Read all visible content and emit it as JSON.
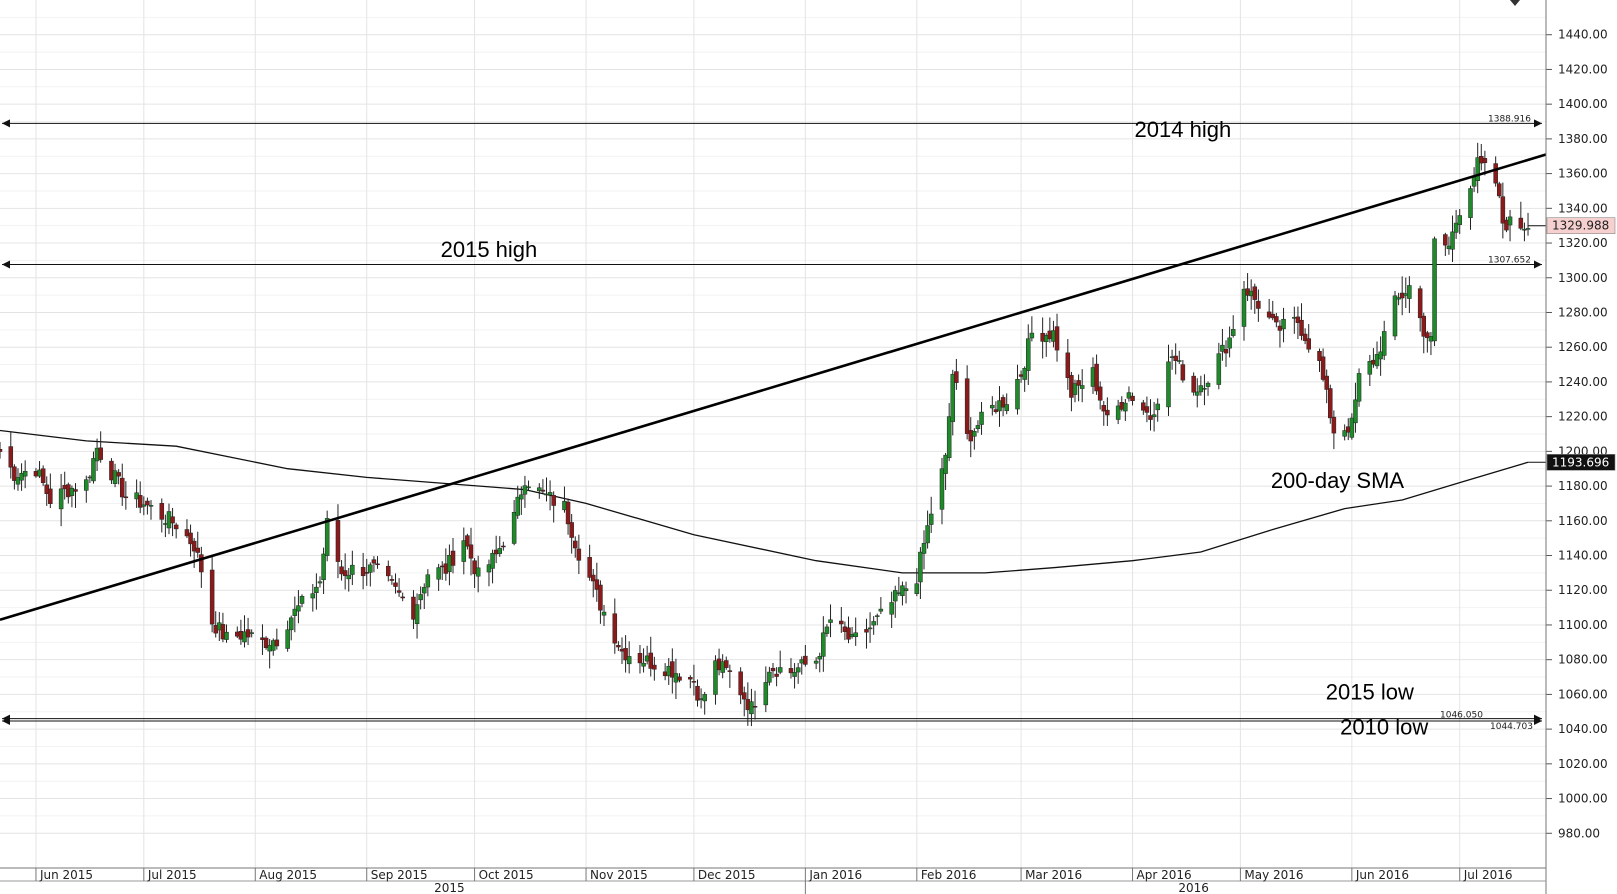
{
  "chart_data": {
    "type": "candlestick",
    "y_axis": {
      "range": [
        960,
        1460
      ],
      "ticks": [
        980,
        1000,
        1020,
        1040,
        1060,
        1080,
        1100,
        1120,
        1140,
        1160,
        1180,
        1200,
        1220,
        1240,
        1260,
        1280,
        1300,
        1320,
        1340,
        1360,
        1380,
        1400,
        1420,
        1440
      ],
      "tick_labels": [
        "980.00",
        "1000.00",
        "1020.00",
        "1040.00",
        "1060.00",
        "1080.00",
        "1100.00",
        "1120.00",
        "1140.00",
        "1160.00",
        "1180.00",
        "1200.00",
        "1220.00",
        "1240.00",
        "1260.00",
        "1280.00",
        "1300.00",
        "1320.00",
        "1340.00",
        "1360.00",
        "1380.00",
        "1400.00",
        "1420.00",
        "1440.00"
      ],
      "position": "right"
    },
    "x_axis": {
      "range": [
        "2015-05-22",
        "2016-07-25"
      ],
      "months": [
        {
          "label": "Jun 2015",
          "date": "2015-06-01"
        },
        {
          "label": "Jul 2015",
          "date": "2015-07-01"
        },
        {
          "label": "Aug 2015",
          "date": "2015-08-01"
        },
        {
          "label": "Sep 2015",
          "date": "2015-09-01"
        },
        {
          "label": "Oct 2015",
          "date": "2015-10-01"
        },
        {
          "label": "Nov 2015",
          "date": "2015-11-01"
        },
        {
          "label": "Dec 2015",
          "date": "2015-12-01"
        },
        {
          "label": "Jan 2016",
          "date": "2016-01-01"
        },
        {
          "label": "Feb 2016",
          "date": "2016-02-01"
        },
        {
          "label": "Mar 2016",
          "date": "2016-03-01"
        },
        {
          "label": "Apr 2016",
          "date": "2016-04-01"
        },
        {
          "label": "May 2016",
          "date": "2016-05-01"
        },
        {
          "label": "Jun 2016",
          "date": "2016-06-01"
        },
        {
          "label": "Jul 2016",
          "date": "2016-07-01"
        }
      ],
      "years": [
        {
          "label": "2015",
          "date": "2015-09-24"
        },
        {
          "label": "2016",
          "date": "2016-04-18"
        }
      ],
      "year_divider": "2016-01-01"
    },
    "grid": true,
    "close_path": [
      [
        "2015-05-22",
        1200
      ],
      [
        "2015-05-26",
        1187
      ],
      [
        "2015-06-01",
        1190
      ],
      [
        "2015-06-05",
        1172
      ],
      [
        "2015-06-10",
        1178
      ],
      [
        "2015-06-15",
        1182
      ],
      [
        "2015-06-18",
        1202
      ],
      [
        "2015-06-22",
        1188
      ],
      [
        "2015-06-26",
        1174
      ],
      [
        "2015-07-01",
        1170
      ],
      [
        "2015-07-06",
        1163
      ],
      [
        "2015-07-10",
        1158
      ],
      [
        "2015-07-15",
        1146
      ],
      [
        "2015-07-17",
        1132
      ],
      [
        "2015-07-20",
        1102
      ],
      [
        "2015-07-24",
        1092
      ],
      [
        "2015-07-29",
        1095
      ],
      [
        "2015-08-03",
        1090
      ],
      [
        "2015-08-07",
        1092
      ],
      [
        "2015-08-11",
        1105
      ],
      [
        "2015-08-14",
        1112
      ],
      [
        "2015-08-19",
        1125
      ],
      [
        "2015-08-21",
        1158
      ],
      [
        "2015-08-25",
        1130
      ],
      [
        "2015-08-28",
        1132
      ],
      [
        "2015-09-03",
        1132
      ],
      [
        "2015-09-08",
        1122
      ],
      [
        "2015-09-14",
        1108
      ],
      [
        "2015-09-18",
        1130
      ],
      [
        "2015-09-23",
        1132
      ],
      [
        "2015-09-28",
        1150
      ],
      [
        "2015-10-02",
        1128
      ],
      [
        "2015-10-07",
        1140
      ],
      [
        "2015-10-12",
        1162
      ],
      [
        "2015-10-15",
        1185
      ],
      [
        "2015-10-20",
        1175
      ],
      [
        "2015-10-26",
        1168
      ],
      [
        "2015-10-30",
        1142
      ],
      [
        "2015-11-05",
        1112
      ],
      [
        "2015-11-11",
        1085
      ],
      [
        "2015-11-17",
        1080
      ],
      [
        "2015-11-24",
        1075
      ],
      [
        "2015-12-01",
        1068
      ],
      [
        "2015-12-03",
        1055
      ],
      [
        "2015-12-07",
        1077
      ],
      [
        "2015-12-11",
        1072
      ],
      [
        "2015-12-17",
        1052
      ],
      [
        "2015-12-22",
        1076
      ],
      [
        "2015-12-28",
        1073
      ],
      [
        "2016-01-04",
        1080
      ],
      [
        "2016-01-08",
        1103
      ],
      [
        "2016-01-14",
        1090
      ],
      [
        "2016-01-20",
        1100
      ],
      [
        "2016-01-26",
        1115
      ],
      [
        "2016-02-01",
        1128
      ],
      [
        "2016-02-05",
        1165
      ],
      [
        "2016-02-09",
        1195
      ],
      [
        "2016-02-11",
        1245
      ],
      [
        "2016-02-15",
        1208
      ],
      [
        "2016-02-22",
        1225
      ],
      [
        "2016-02-26",
        1230
      ],
      [
        "2016-03-01",
        1245
      ],
      [
        "2016-03-04",
        1268
      ],
      [
        "2016-03-10",
        1268
      ],
      [
        "2016-03-15",
        1233
      ],
      [
        "2016-03-21",
        1245
      ],
      [
        "2016-03-25",
        1217
      ],
      [
        "2016-03-31",
        1234
      ],
      [
        "2016-04-06",
        1220
      ],
      [
        "2016-04-12",
        1255
      ],
      [
        "2016-04-18",
        1235
      ],
      [
        "2016-04-22",
        1243
      ],
      [
        "2016-04-28",
        1265
      ],
      [
        "2016-05-02",
        1295
      ],
      [
        "2016-05-06",
        1285
      ],
      [
        "2016-05-11",
        1270
      ],
      [
        "2016-05-17",
        1275
      ],
      [
        "2016-05-23",
        1250
      ],
      [
        "2016-05-27",
        1212
      ],
      [
        "2016-06-01",
        1215
      ],
      [
        "2016-06-03",
        1242
      ],
      [
        "2016-06-08",
        1255
      ],
      [
        "2016-06-13",
        1285
      ],
      [
        "2016-06-17",
        1295
      ],
      [
        "2016-06-21",
        1270
      ],
      [
        "2016-06-23",
        1263
      ],
      [
        "2016-06-24",
        1320
      ],
      [
        "2016-06-28",
        1318
      ],
      [
        "2016-07-01",
        1340
      ],
      [
        "2016-07-06",
        1365
      ],
      [
        "2016-07-08",
        1362
      ],
      [
        "2016-07-11",
        1355
      ],
      [
        "2016-07-13",
        1332
      ],
      [
        "2016-07-18",
        1330
      ],
      [
        "2016-07-20",
        1331
      ]
    ],
    "sma_200": [
      [
        "2015-05-22",
        1212
      ],
      [
        "2015-06-15",
        1206
      ],
      [
        "2015-07-10",
        1203
      ],
      [
        "2015-08-10",
        1190
      ],
      [
        "2015-09-01",
        1185
      ],
      [
        "2015-10-15",
        1178
      ],
      [
        "2015-11-01",
        1170
      ],
      [
        "2015-12-01",
        1152
      ],
      [
        "2016-01-04",
        1137
      ],
      [
        "2016-01-28",
        1130
      ],
      [
        "2016-02-20",
        1130
      ],
      [
        "2016-03-10",
        1133
      ],
      [
        "2016-04-01",
        1137
      ],
      [
        "2016-04-20",
        1142
      ],
      [
        "2016-05-10",
        1155
      ],
      [
        "2016-05-30",
        1167
      ],
      [
        "2016-06-15",
        1172
      ],
      [
        "2016-07-01",
        1182
      ],
      [
        "2016-07-20",
        1193.696
      ]
    ],
    "trendline": [
      [
        "2015-05-22",
        1103
      ],
      [
        "2016-07-25",
        1371
      ]
    ],
    "hlines": [
      {
        "value": 1388.916,
        "label": "1388.916"
      },
      {
        "value": 1307.652,
        "label": "1307.652"
      },
      {
        "value": 1046.05,
        "label": "1046.050"
      },
      {
        "value": 1044.703,
        "label": "1044.703"
      }
    ],
    "annotations": [
      {
        "text": "2014 high",
        "date": "2016-04-15",
        "y": 1381
      },
      {
        "text": "2015 high",
        "date": "2015-10-05",
        "y": 1312
      },
      {
        "text": "200-day SMA",
        "date": "2016-05-28",
        "y": 1179
      },
      {
        "text": "2015 low",
        "date": "2016-06-06",
        "y": 1057
      },
      {
        "text": "2010 low",
        "date": "2016-06-10",
        "y": 1037
      }
    ],
    "price_badges": [
      {
        "value": 1329.988,
        "label": "1329.988",
        "bg": "#f6cfcf",
        "fg": "#222222"
      },
      {
        "value": 1193.696,
        "label": "1193.696",
        "bg": "#111111",
        "fg": "#ffffff"
      }
    ]
  }
}
